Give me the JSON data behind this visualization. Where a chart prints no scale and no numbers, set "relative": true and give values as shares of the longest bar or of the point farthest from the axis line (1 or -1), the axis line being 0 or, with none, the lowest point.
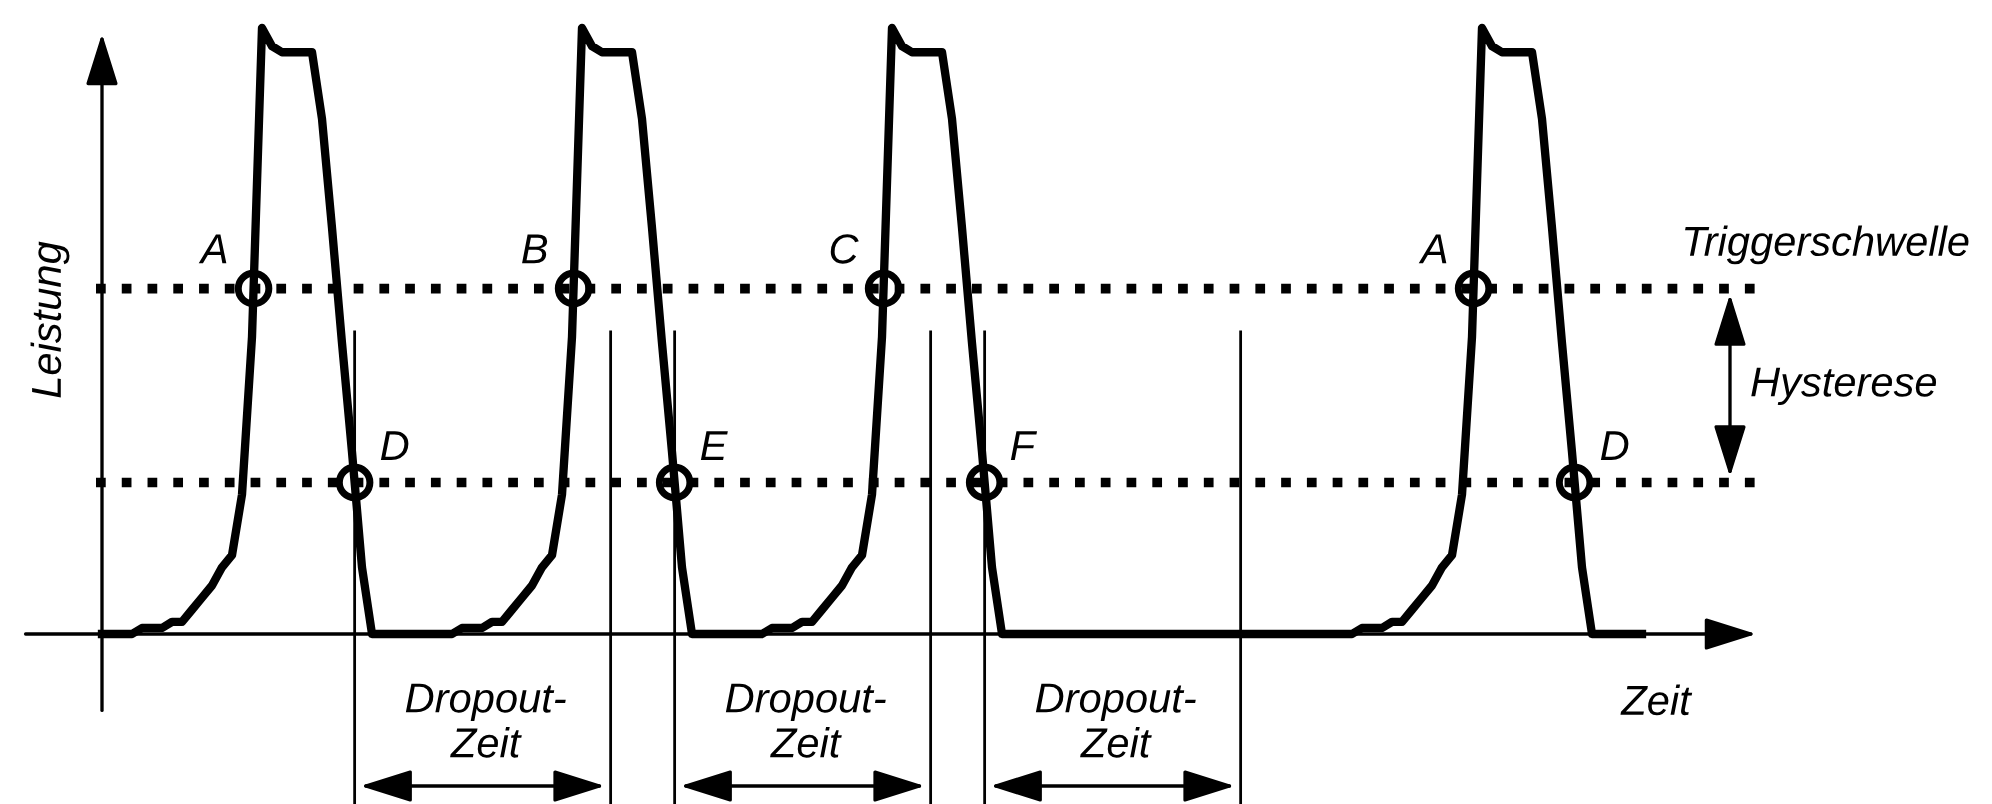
{
  "chart_data": {
    "type": "line",
    "relative": true,
    "xlabel": "Zeit",
    "ylabel": "Leistung",
    "categories": [
      null,
      null,
      null,
      null,
      null,
      null,
      null,
      null,
      null,
      null,
      null,
      null,
      null,
      null,
      null,
      null,
      null,
      null,
      null,
      null,
      null,
      null,
      null,
      null,
      null,
      null,
      null,
      null,
      null,
      null,
      null,
      null,
      null,
      null,
      null,
      null,
      null,
      null,
      null,
      null,
      null,
      null,
      null,
      null,
      null,
      null,
      null,
      null,
      null,
      null,
      null,
      null,
      null,
      null,
      null,
      null,
      null,
      null,
      null,
      null,
      null,
      null,
      null,
      null,
      null,
      null,
      null,
      null,
      null,
      null,
      null,
      null,
      null,
      null,
      null,
      null,
      null,
      null,
      null,
      null,
      null,
      null,
      null,
      null,
      null,
      null,
      null,
      null,
      null,
      null,
      null,
      null,
      null,
      null,
      null,
      null,
      null,
      null,
      null,
      null,
      null,
      null,
      null,
      null,
      null,
      null,
      null,
      null,
      null,
      null,
      null,
      null,
      null,
      null,
      null,
      null,
      null,
      null,
      null,
      null,
      null,
      null,
      null,
      null,
      null,
      null,
      null,
      null,
      null,
      null,
      null,
      null,
      null,
      null,
      null,
      null,
      null,
      null,
      null,
      null,
      null,
      null,
      null,
      null,
      null,
      null,
      null,
      null,
      null,
      null,
      null,
      null,
      null,
      null,
      null
    ],
    "series": [
      {
        "color": "#000000",
        "values": [
          0,
          0,
          0,
          0,
          0.01,
          0.01,
          0.01,
          0.02,
          0.02,
          0.04,
          0.06,
          0.08,
          0.11,
          0.13,
          0.23,
          0.49,
          1,
          0.97,
          0.96,
          0.96,
          0.96,
          0.96,
          0.85,
          0.67,
          0.48,
          0.3,
          0.11,
          0,
          0,
          0,
          0,
          0,
          0,
          0,
          0,
          0,
          0.01,
          0.01,
          0.01,
          0.02,
          0.02,
          0.04,
          0.06,
          0.08,
          0.11,
          0.13,
          0.23,
          0.49,
          1,
          0.97,
          0.96,
          0.96,
          0.96,
          0.96,
          0.85,
          0.67,
          0.48,
          0.3,
          0.11,
          0,
          0,
          0,
          0,
          0,
          0,
          0,
          0,
          0.01,
          0.01,
          0.01,
          0.02,
          0.02,
          0.04,
          0.06,
          0.08,
          0.11,
          0.13,
          0.23,
          0.49,
          1,
          0.97,
          0.96,
          0.96,
          0.96,
          0.96,
          0.85,
          0.67,
          0.48,
          0.3,
          0.11,
          0,
          0,
          0,
          0,
          0,
          0,
          0,
          0,
          0,
          0,
          0,
          0,
          0,
          0,
          0,
          0,
          0,
          0,
          0,
          0,
          0,
          0,
          0,
          0,
          0,
          0,
          0,
          0,
          0,
          0,
          0,
          0,
          0,
          0,
          0,
          0,
          0.01,
          0.01,
          0.01,
          0.02,
          0.02,
          0.04,
          0.06,
          0.08,
          0.11,
          0.13,
          0.23,
          0.49,
          1,
          0.97,
          0.96,
          0.96,
          0.96,
          0.96,
          0.85,
          0.67,
          0.48,
          0.3,
          0.11,
          0,
          0,
          0,
          0,
          0,
          0
        ]
      }
    ],
    "ref_lines": [
      {
        "axis": "y",
        "value": 0.57,
        "label": "Triggerschwelle",
        "line_style": "dotted",
        "color": "#000000"
      },
      {
        "axis": "y",
        "value": 0.25,
        "label": null,
        "line_style": "dotted",
        "color": "#000000"
      }
    ],
    "annotations": [
      "A",
      "B",
      "C",
      "A",
      "D",
      "E",
      "F",
      "D",
      "Dropout-\nZeit",
      "Dropout-\nZeit",
      "Dropout-\nZeit",
      "Hysterese"
    ]
  }
}
